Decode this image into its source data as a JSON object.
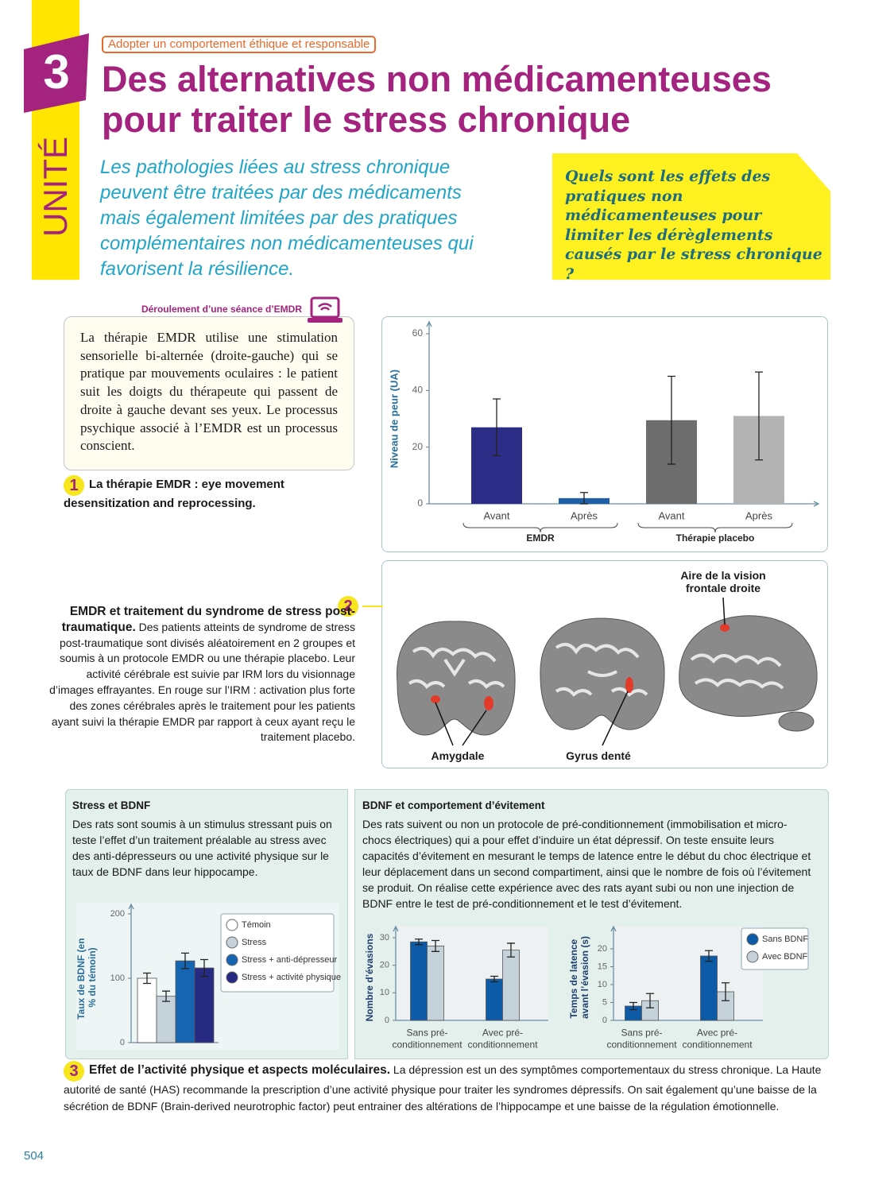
{
  "header": {
    "unit_number": "3",
    "unit_label": "UNITÉ",
    "tag": "Adopter un comportement éthique et responsable",
    "title": "Des alternatives non médicamenteuses pour traiter le stress chronique",
    "intro": "Les pathologies liées au stress chronique peuvent être traitées par des médicaments mais également limitées par des pratiques complémentaires non médicamenteuses qui favorisent la résilience.",
    "question": "Quels sont les effets des pratiques non médicamenteuses pour limiter les dérèglements causés par le stress chronique ?"
  },
  "doc1": {
    "link_label": "Déroulement d’une séance d’EMDR",
    "text": "La thérapie EMDR utilise une stimulation sensorielle bi-alternée (droite-gauche) qui se pratique par mouvements oculaires : le patient suit les doigts du thérapeute qui passent de droite à gauche devant ses yeux. Le processus psychique associé à l’EMDR est un processus conscient.",
    "number": "1",
    "caption": "La thérapie EMDR : eye movement desensitization and reprocessing."
  },
  "doc2": {
    "number": "2",
    "caption_title": "EMDR et traitement du syndrome de stress post-traumatique.",
    "caption_text": "Des patients atteints de syndrome de stress post-traumatique sont divisés aléatoirement en 2 groupes et soumis à un protocole EMDR ou une thérapie placebo. Leur activité cérébrale est suivie par IRM lors du visionnage d’images effrayantes. En rouge sur l’IRM : activation plus forte des zones cérébrales après le traitement pour les patients ayant suivi la thérapie EMDR par rapport à ceux ayant reçu le traitement placebo.",
    "labels": [
      "Aire de la vision frontale droite",
      "Amygdale",
      "Gyrus denté"
    ]
  },
  "doc3": {
    "left_title": "Stress et BDNF",
    "left_text": "Des rats sont soumis à un stimulus stressant puis on teste l’effet d’un traitement préalable au stress avec des anti-dépresseurs ou une activité physique sur le taux de BDNF dans leur hippocampe.",
    "right_title": "BDNF et comportement d’évitement",
    "right_text": "Des rats suivent ou non un protocole de pré-conditionnement (immobilisation et micro-chocs électriques) qui a pour effet d’induire un état dépressif. On teste ensuite leurs capacités d’évitement en mesurant le temps de latence entre le début du choc électrique et leur déplacement dans un second compartiment, ainsi que le nombre de fois où l’évitement se produit. On réalise cette expérience avec des rats ayant subi ou non une injection de BDNF entre le test de pré-conditionnement et le test d’évitement.",
    "number": "3",
    "caption_title": "Effet de l’activité physique et aspects moléculaires.",
    "caption_text": "La dépression est un des symptômes comportementaux du stress chronique. La Haute autorité de santé (HAS) recommande la prescription d’une activité physique pour traiter les syndromes dépressifs. On sait également qu’une baisse de la sécrétion de BDNF (Brain-derived neurotrophic factor) peut entrainer des altérations de l’hippocampe et une baisse de la régulation émotionnelle."
  },
  "page_number": "504",
  "chart_data": [
    {
      "type": "bar",
      "y_label": "Niveau de peur (UA)",
      "categories": [
        "Avant",
        "Après",
        "Avant",
        "Après"
      ],
      "groups": [
        "EMDR",
        "Thérapie placebo"
      ],
      "values": [
        27,
        2,
        29.5,
        31
      ],
      "errors": [
        10,
        2,
        15.5,
        15.5
      ],
      "colors": [
        "#2b2d86",
        "#1f5fa8",
        "#6d6d6d",
        "#b3b3b3"
      ],
      "ylim": [
        0,
        60
      ],
      "yticks": [
        0,
        20,
        40,
        60
      ]
    },
    {
      "type": "bar",
      "y_label": "Taux de BDNF (en % du témoin)",
      "legend": "upper right",
      "series": [
        {
          "name": "Témoin",
          "color": "#ffffff",
          "values": [
            100
          ],
          "errors": [
            8
          ]
        },
        {
          "name": "Stress",
          "color": "#c6d2da",
          "values": [
            72
          ],
          "errors": [
            8
          ]
        },
        {
          "name": "Stress + anti-dépresseur",
          "color": "#1565b0",
          "values": [
            127
          ],
          "errors": [
            12
          ]
        },
        {
          "name": "Stress + activité physique",
          "color": "#262a80",
          "values": [
            116
          ],
          "errors": [
            13
          ]
        }
      ],
      "ylim": [
        0,
        200
      ],
      "yticks": [
        0,
        100,
        200
      ]
    },
    {
      "type": "bar",
      "y_label": "Nombre d’évasions",
      "categories": [
        "Sans pré-conditionnement",
        "Avec pré-conditionnement"
      ],
      "series": [
        {
          "name": "Sans BDNF",
          "color": "#0d5aa7",
          "values": [
            28.5,
            15
          ],
          "errors": [
            1,
            1
          ]
        },
        {
          "name": "Avec BDNF",
          "color": "#c6d2da",
          "values": [
            27,
            25.5
          ],
          "errors": [
            2,
            2.5
          ]
        }
      ],
      "ylim": [
        0,
        30
      ],
      "yticks": [
        0,
        10,
        20,
        30
      ]
    },
    {
      "type": "bar",
      "y_label": "Temps de latence avant l’évasion (s)",
      "categories": [
        "Sans pré-conditionnement",
        "Avec pré-conditionnement"
      ],
      "legend": "upper right",
      "series": [
        {
          "name": "Sans BDNF",
          "color": "#0d5aa7",
          "values": [
            4,
            18
          ],
          "errors": [
            1,
            1.5
          ]
        },
        {
          "name": "Avec BDNF",
          "color": "#c6d2da",
          "values": [
            5.5,
            8
          ],
          "errors": [
            2,
            2.5
          ]
        }
      ],
      "ylim": [
        0,
        20
      ],
      "yticks": [
        0,
        5,
        10,
        15,
        20
      ]
    }
  ]
}
